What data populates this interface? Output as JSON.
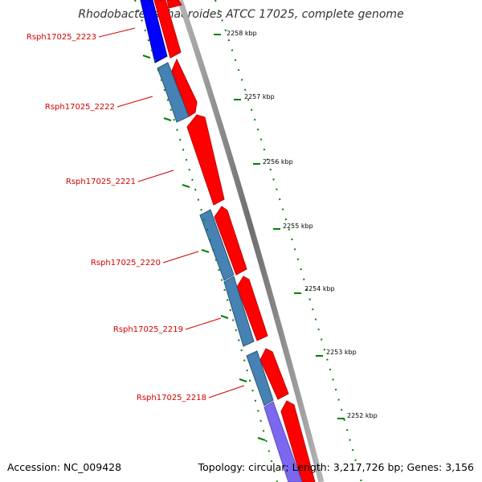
{
  "title": "Rhodobacter sphaeroides ATCC 17025, complete genome",
  "accession": "Accession: NC_009428",
  "topology": "Topology: circular; Length: 3,217,726 bp; Genes: 3,156",
  "gene_labels": [
    "Rsph17025_2223",
    "Rsph17025_2222",
    "Rsph17025_2221",
    "Rsph17025_2220",
    "Rsph17025_2219",
    "Rsph17025_2218"
  ],
  "scale_ticks": [
    "2258 kbp",
    "2257 kbp",
    "2256 kbp",
    "2255 kbp",
    "2254 kbp",
    "2253 kbp",
    "2252 kbp"
  ],
  "colors": {
    "forward_cds": "#ff0000",
    "reverse_cds": "#4682b4",
    "reverse_cds_alt": "#0000ff",
    "reverse_cds_purple": "#7b68ee",
    "backbone": "#808080",
    "ticks": "#008000",
    "gene_label": "#d40000"
  }
}
